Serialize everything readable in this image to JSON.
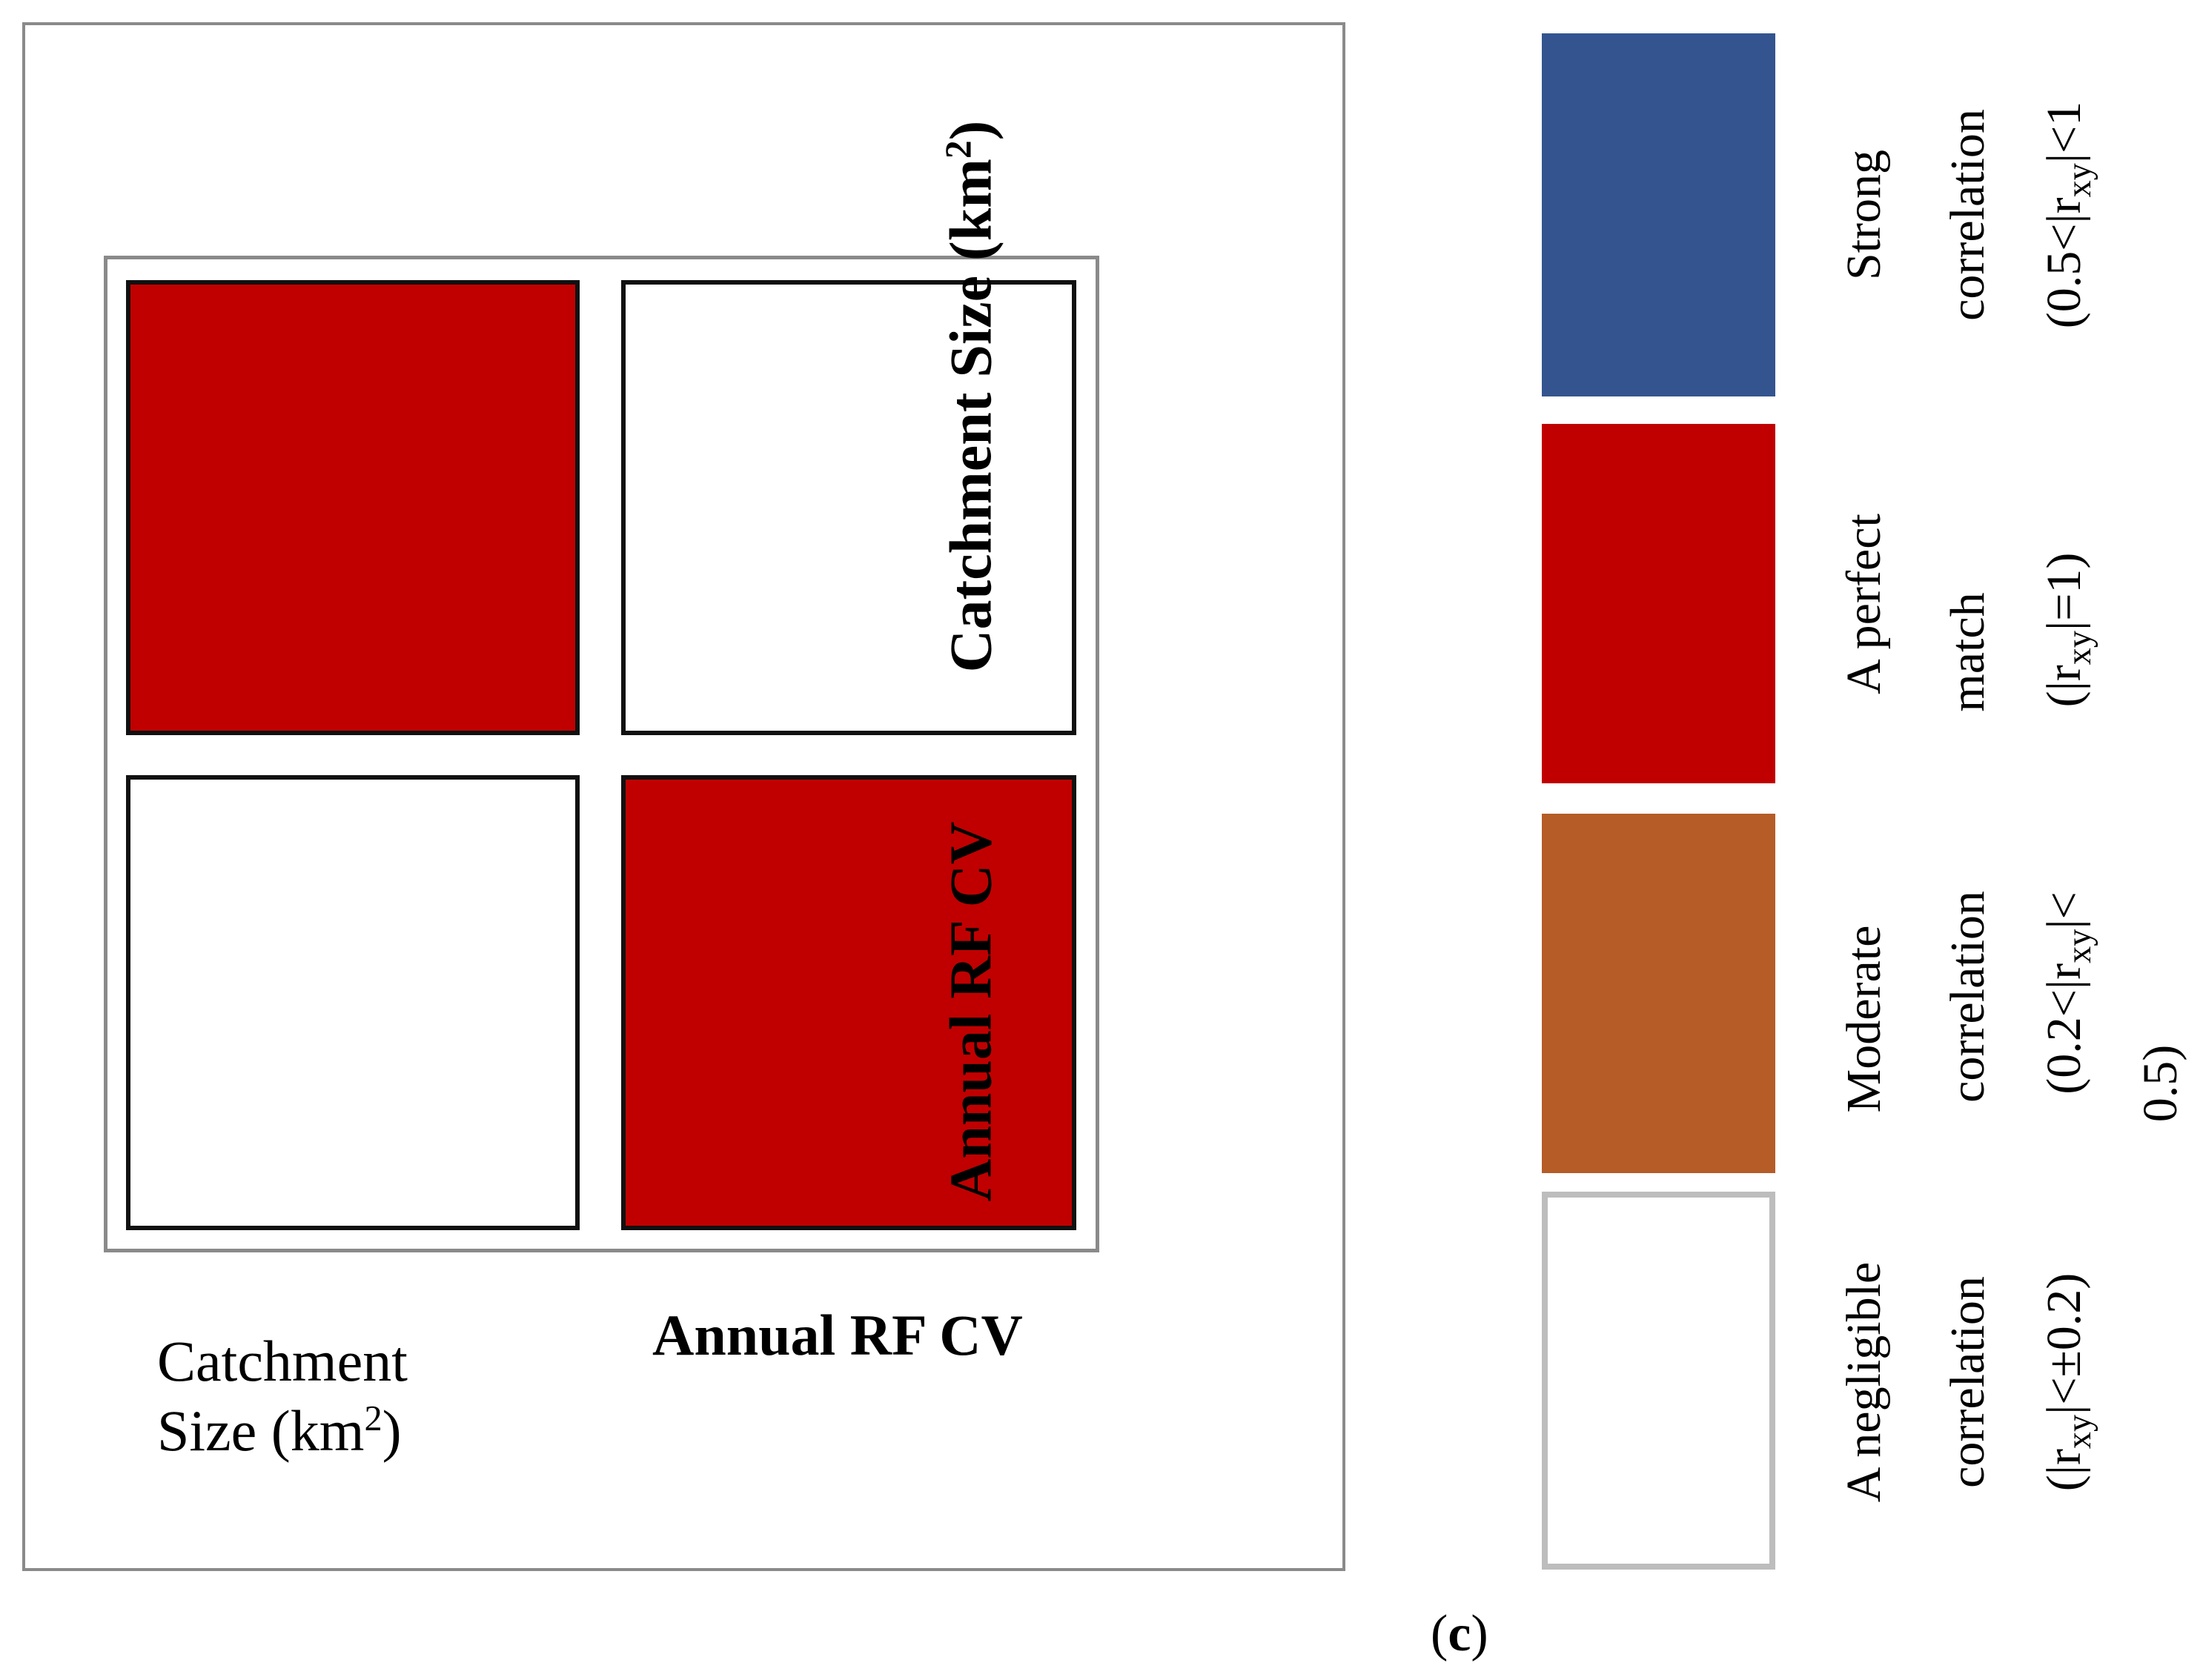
{
  "chart_data": {
    "type": "heatmap",
    "title": "",
    "row_labels": [
      "Catchment Size (km2)",
      "Annual RF CV"
    ],
    "col_labels": [
      "Catchment Size (km2)",
      "Annual RF CV"
    ],
    "values": [
      [
        "A perfect match",
        "A negligible correlation"
      ],
      [
        "A negligible correlation",
        "A perfect match"
      ]
    ],
    "legend": [
      {
        "label": "Strong correlation",
        "range": "(0.5<|rxy|<1",
        "color": "#33548f"
      },
      {
        "label": "A perfect match",
        "range": "(|rxy|=1)",
        "color": "#c00000"
      },
      {
        "label": "Moderate correlation",
        "range": "(0.2<|rxy|< 0.5)",
        "color": "#b55c27"
      },
      {
        "label": "A negligible correlation",
        "range": "(|rxy|<±0.2)",
        "color": "#ffffff"
      }
    ],
    "caption": "(c)"
  },
  "labels": {
    "x0_line1": "Catchment",
    "x0_line2": "Size (km",
    "x0_sup": "2",
    "x0_close": ")",
    "x1": "Annual RF CV",
    "y0": "Catchment Size (km",
    "y0_sup": "2",
    "y0_close": ")",
    "y1": "Annual RF CV"
  },
  "legend_text": {
    "strong_l1": "Strong",
    "strong_l2": "correlation",
    "strong_l3a": "(0.5<|",
    "strong_l3b": "r",
    "strong_l3sub": "xy",
    "strong_l3c": "|<1",
    "perfect_l1": "A perfect",
    "perfect_l2": "match",
    "perfect_l3a": "(|",
    "perfect_l3b": "r",
    "perfect_l3sub": "xy",
    "perfect_l3c": "|=1)",
    "moderate_l1": "Moderate",
    "moderate_l2": "correlation",
    "moderate_l3a": "(0.2<|",
    "moderate_l3b": "r",
    "moderate_l3sub": "xy",
    "moderate_l3c": "|<",
    "moderate_l4": "0.5)",
    "negl_l1": "A negligible",
    "negl_l2": "correlation",
    "negl_l3a": "(|",
    "negl_l3b": "r",
    "negl_l3sub": "xy",
    "negl_l3c": "|<±0.2)"
  },
  "caption": {
    "open": "(",
    "letter": "c",
    "close": ")"
  }
}
